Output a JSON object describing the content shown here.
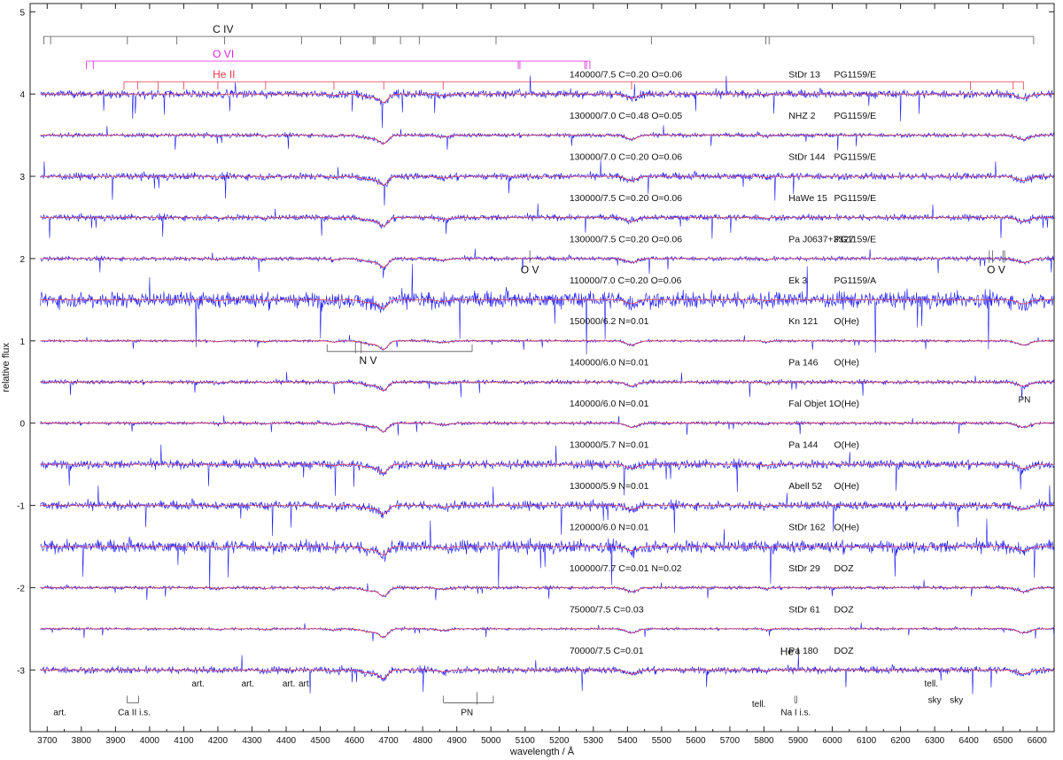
{
  "chart_data": {
    "type": "line",
    "xlabel": "wavelength / Å",
    "ylabel": "relative flux",
    "xlim": [
      3650,
      6650
    ],
    "ylim": [
      -3.75,
      5.1
    ],
    "x_ticks": [
      3700,
      3800,
      3900,
      4000,
      4100,
      4200,
      4300,
      4400,
      4500,
      4600,
      4700,
      4800,
      4900,
      5000,
      5100,
      5200,
      5300,
      5400,
      5500,
      5600,
      5700,
      5800,
      5900,
      6000,
      6100,
      6200,
      6300,
      6400,
      6500,
      6600
    ],
    "y_ticks": [
      5,
      4,
      3,
      2,
      1,
      0,
      -1,
      -2,
      -3
    ],
    "observed_color": "#1a1aff",
    "model_color": "#e6394a",
    "series": [
      {
        "model": "140000/7.5 C=0.20 O=0.06",
        "star": "StDr 13",
        "spectral_type": "PG1159/E",
        "offset": 4.0,
        "noise": 0.045
      },
      {
        "model": "130000/7.0 C=0.48 O=0.05",
        "star": "NHZ 2",
        "spectral_type": "PG1159/E",
        "offset": 3.5,
        "noise": 0.025
      },
      {
        "model": "130000/7.0 C=0.20 O=0.06",
        "star": "StDr 144",
        "spectral_type": "PG1159/E",
        "offset": 3.0,
        "noise": 0.04
      },
      {
        "model": "130000/7.5 C=0.20 O=0.06",
        "star": "HaWe 15",
        "spectral_type": "PG1159/E",
        "offset": 2.5,
        "noise": 0.035
      },
      {
        "model": "130000/7.5 C=0.20 O=0.06",
        "star": "Pa J0637+3327",
        "spectral_type": "PG1159/E",
        "offset": 2.0,
        "noise": 0.025
      },
      {
        "model": "110000/7.0 C=0.20 O=0.06",
        "star": "Ek 3",
        "spectral_type": "PG1159/A",
        "offset": 1.5,
        "noise": 0.09
      },
      {
        "model": "150000/6.2 N=0.01",
        "star": "Kn 121",
        "spectral_type": "O(He)",
        "offset": 1.0,
        "noise": 0.015
      },
      {
        "model": "140000/6.0 N=0.01",
        "star": "Pa 146",
        "spectral_type": "O(He)",
        "offset": 0.5,
        "noise": 0.025
      },
      {
        "model": "140000/6.0 N=0.01",
        "star": "Fal Objet 1",
        "spectral_type": "O(He)",
        "offset": 0.0,
        "noise": 0.02
      },
      {
        "model": "130000/5.7 N=0.01",
        "star": "Pa 144",
        "spectral_type": "O(He)",
        "offset": -0.5,
        "noise": 0.05
      },
      {
        "model": "130000/5.9 N=0.01",
        "star": "Abell 52",
        "spectral_type": "O(He)",
        "offset": -1.0,
        "noise": 0.05
      },
      {
        "model": "120000/6.0 N=0.01",
        "star": "StDr 162",
        "spectral_type": "O(He)",
        "offset": -1.5,
        "noise": 0.07
      },
      {
        "model": "100000/7.7 C=0.01 N=0.02",
        "star": "StDr 29",
        "spectral_type": "DOZ",
        "offset": -2.0,
        "noise": 0.02
      },
      {
        "model": "75000/7.5 C=0.03",
        "star": "StDr 61",
        "spectral_type": "DOZ",
        "offset": -2.5,
        "noise": 0.015
      },
      {
        "model": "70000/7.5 C=0.01",
        "star": "Pa 180",
        "spectral_type": "DOZ",
        "offset": -3.0,
        "noise": 0.04
      }
    ],
    "line_identifications": [
      {
        "ion": "C IV",
        "color": "#555555",
        "y": 4.7,
        "ticks": [
          3690,
          3710,
          3935,
          4080,
          4220,
          4445,
          4560,
          4655,
          4660,
          4735,
          4790,
          5015,
          5470,
          5805,
          5815,
          6590
        ]
      },
      {
        "ion": "O VI",
        "color": "#dd22dd",
        "y": 4.4,
        "ticks": [
          3815,
          3835,
          5080,
          5085,
          5275,
          5280,
          5290
        ]
      },
      {
        "ion": "He II",
        "color": "#e6394a",
        "y": 4.15,
        "ticks": [
          3925,
          3965,
          4025,
          4100,
          4200,
          4340,
          4540,
          4686,
          4860,
          5412,
          6405,
          6530,
          6560
        ]
      }
    ],
    "annotations": [
      {
        "text": "O V",
        "x": 5114,
        "y": 1.82,
        "ticks": [
          5114
        ]
      },
      {
        "text": "O V",
        "x": 6480,
        "y": 1.82,
        "ticks": [
          6460,
          6470,
          6500,
          6505
        ]
      },
      {
        "text": "N V",
        "x": 4640,
        "y": 0.72,
        "bracket": [
          4520,
          4945
        ],
        "ticks": [
          4603,
          4620
        ]
      },
      {
        "text": "PN",
        "x": 4930,
        "y": -3.55,
        "bracket": [
          4861,
          5007
        ],
        "ticks": [
          4959
        ]
      },
      {
        "text": "PN",
        "x": 6563,
        "y": 0.25
      },
      {
        "text": "He I",
        "x": 5876,
        "y": -2.82
      },
      {
        "text": "art.",
        "x": 3737,
        "y": -3.55
      },
      {
        "text": "Ca II i.s.",
        "x": 3955,
        "y": -3.55,
        "bracket": [
          3934,
          3968
        ]
      },
      {
        "text": "art.",
        "x": 4142,
        "y": -3.2
      },
      {
        "text": "art.",
        "x": 4288,
        "y": -3.2
      },
      {
        "text": "art.",
        "x": 4408,
        "y": -3.2
      },
      {
        "text": "art.",
        "x": 4455,
        "y": -3.2
      },
      {
        "text": "tell.",
        "x": 5785,
        "y": -3.45
      },
      {
        "text": "Na I i.s.",
        "x": 5893,
        "y": -3.55,
        "bracket": [
          5890,
          5896
        ]
      },
      {
        "text": "tell.",
        "x": 6290,
        "y": -3.2
      },
      {
        "text": "sky",
        "x": 6300,
        "y": -3.4
      },
      {
        "text": "sky",
        "x": 6364,
        "y": -3.4
      }
    ]
  }
}
